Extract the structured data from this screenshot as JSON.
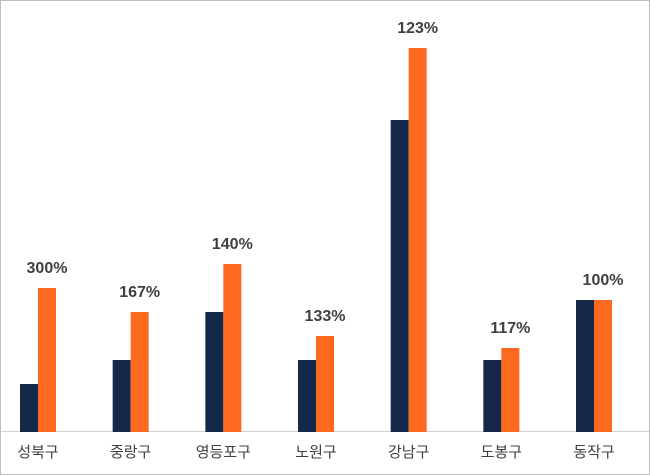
{
  "chart_data": {
    "type": "bar",
    "categories": [
      "성북구",
      "중랑구",
      "영등포구",
      "노원구",
      "강남구",
      "도봉구",
      "동작구"
    ],
    "series": [
      {
        "color": "#14294a",
        "values": [
          2,
          3,
          5,
          3,
          13,
          3,
          5.5
        ]
      },
      {
        "color": "#fd6a1f",
        "values": [
          6,
          5,
          7,
          4,
          16,
          3.5,
          5.5
        ]
      }
    ],
    "ratio_labels": [
      "300%",
      "167%",
      "140%",
      "133%",
      "123%",
      "117%",
      "100%"
    ],
    "ylim": [
      0,
      18
    ]
  }
}
